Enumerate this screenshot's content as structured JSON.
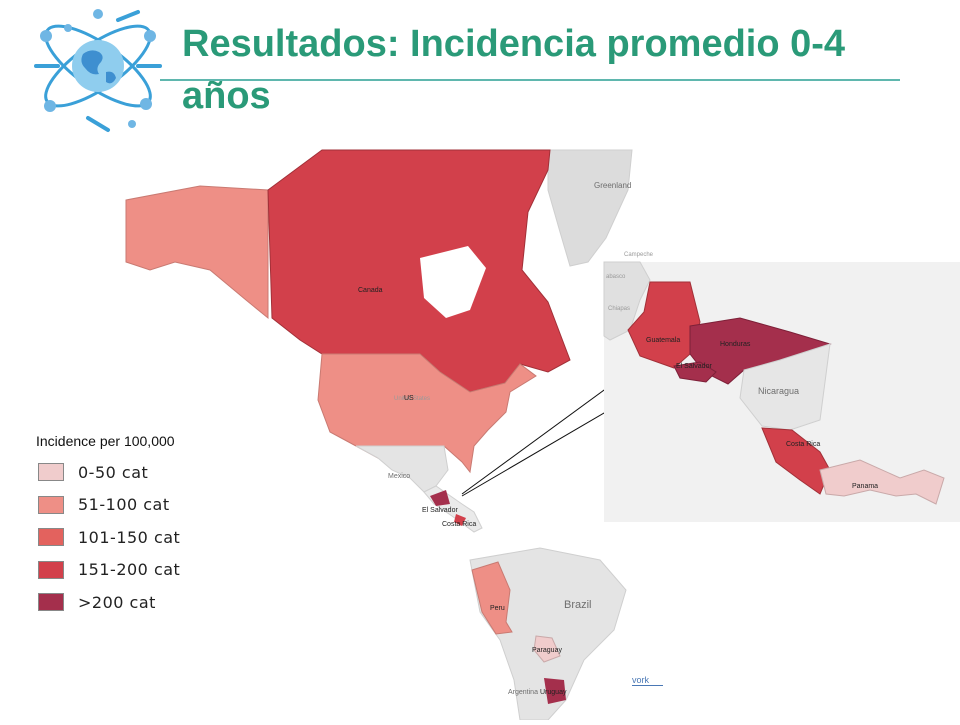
{
  "slide": {
    "title": "Resultados: Incidencia promedio 0-4 años"
  },
  "legend": {
    "title": "Incidence per 100,000",
    "items": [
      {
        "label": "0-50 cat",
        "color": "#f0cccc"
      },
      {
        "label": "51-100 cat",
        "color": "#ee8f86"
      },
      {
        "label": "101-150 cat",
        "color": "#e3625e"
      },
      {
        "label": "151-200 cat",
        "color": "#d2404b"
      },
      {
        "label": ">200 cat",
        "color": "#a42f4c"
      }
    ]
  },
  "map_labels": {
    "greenland": "Greenland",
    "canada": "Canada",
    "us": "US",
    "united_states_bg": "United States",
    "mexico": "Mexico",
    "el_salvador_main": "El Salvador",
    "costa_rica_main": "Costa Rica",
    "peru": "Peru",
    "brazil": "Brazil",
    "paraguay": "Paraguay",
    "uruguay": "Uruguay",
    "argentina": "Argentina",
    "campeche": "Campeche",
    "tabasco": "abasco",
    "chiapas": "Chiapas",
    "guatemala": "Guatemala",
    "honduras": "Honduras",
    "el_salvador_inset": "El Salvador",
    "nicaragua": "Nicaragua",
    "costa_rica_inset": "Costa Rica",
    "panama": "Panama",
    "network_link": "vork"
  },
  "incidence": {
    "Alaska": "51-100 cat",
    "Canada": "151-200 cat",
    "US": "51-100 cat",
    "Guatemala": "151-200 cat",
    "Honduras": ">200 cat",
    "El Salvador": ">200 cat",
    "Costa Rica": "151-200 cat",
    "Panama": "0-50 cat",
    "Peru": "51-100 cat",
    "Paraguay": "0-50 cat",
    "Uruguay": ">200 cat"
  }
}
